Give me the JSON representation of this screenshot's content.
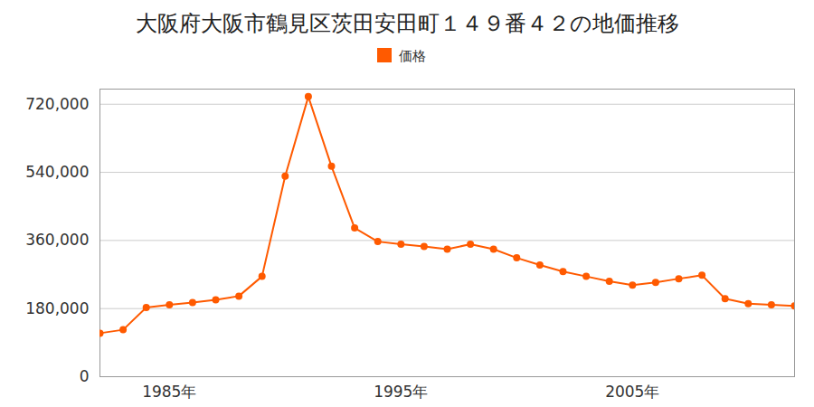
{
  "chart_data": {
    "type": "line",
    "title": "大阪府大阪市鶴見区茨田安田町１４９番４２の地価推移",
    "x": [
      1982,
      1983,
      1984,
      1985,
      1986,
      1987,
      1988,
      1989,
      1990,
      1991,
      1992,
      1993,
      1994,
      1995,
      1996,
      1997,
      1998,
      1999,
      2000,
      2001,
      2002,
      2003,
      2004,
      2005,
      2006,
      2007,
      2008,
      2009,
      2010,
      2011,
      2012
    ],
    "series": [
      {
        "name": "価格",
        "color": "#ff5a00",
        "marker": "circle",
        "values": [
          115000,
          124000,
          183000,
          190000,
          196000,
          203000,
          213000,
          265000,
          530000,
          740000,
          556000,
          393000,
          357000,
          350000,
          344000,
          337000,
          350000,
          337000,
          314000,
          295000,
          278000,
          265000,
          252000,
          242000,
          249000,
          259000,
          268000,
          206000,
          193000,
          190000,
          187000
        ]
      }
    ],
    "xlim": [
      1982,
      2012
    ],
    "xticks": [
      {
        "value": 1985,
        "label": "1985年"
      },
      {
        "value": 1995,
        "label": "1995年"
      },
      {
        "value": 2005,
        "label": "2005年"
      }
    ],
    "ylim": [
      0,
      760000
    ],
    "yticks": [
      0,
      {
        "value": 180000,
        "label": "180,000"
      },
      {
        "value": 360000,
        "label": "360,000"
      },
      {
        "value": 540000,
        "label": "540,000"
      },
      {
        "value": 720000,
        "label": "720,000"
      }
    ],
    "grid": true,
    "legend": "top"
  }
}
